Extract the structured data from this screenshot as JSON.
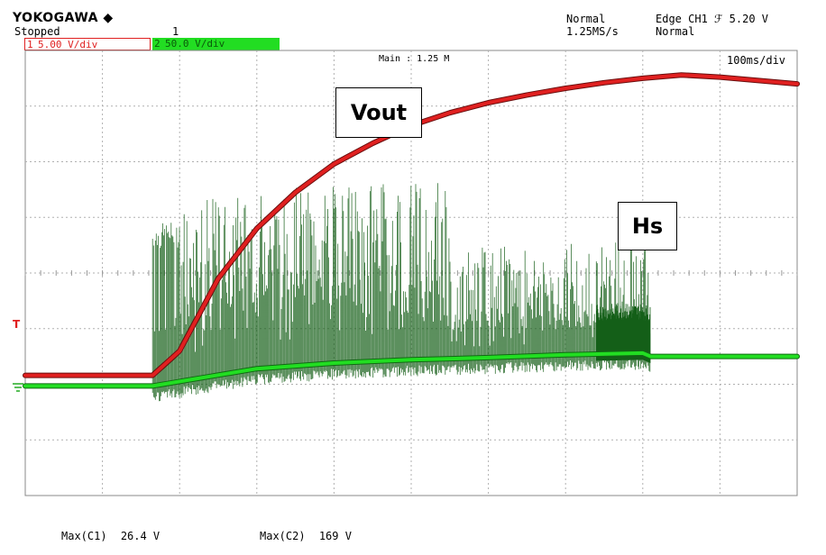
{
  "header": {
    "brand": "YOKOGAWA ◆",
    "status": "Stopped",
    "marker": "1",
    "trigger_mode": "Normal",
    "sample_rate": "1.25MS/s",
    "trigger_source": "Edge CH1 ℱ 5.20 V",
    "trigger_type": "Normal"
  },
  "channels": [
    {
      "number": "1",
      "scale": "5.00 V/div",
      "color": "#e02020"
    },
    {
      "number": "2",
      "scale": "50.0 V/div",
      "color": "#22dd22"
    }
  ],
  "screen": {
    "main_label": "Main : 1.25 M",
    "timebase": "100ms/div",
    "trigger_marker": "T"
  },
  "annotations": {
    "vout": "Vout",
    "hs": "Hs"
  },
  "measurements": [
    {
      "label": "Max(C1)",
      "value": "26.4 V"
    },
    {
      "label": "Max(C2)",
      "value": "169 V"
    }
  ],
  "chart_data": {
    "type": "line",
    "x_unit": "div",
    "y_unit": "div",
    "xlim": [
      0,
      10
    ],
    "ylim": [
      -4,
      4
    ],
    "grid": true,
    "series": [
      {
        "name": "Vout",
        "color": "#e02020",
        "x": [
          0,
          1.65,
          2.0,
          2.5,
          3.0,
          3.5,
          4.0,
          4.5,
          5.0,
          5.5,
          6.0,
          6.5,
          7.0,
          7.5,
          8.0,
          8.5,
          9.0,
          10.0
        ],
        "y": [
          -1.84,
          -1.84,
          -1.4,
          -0.1,
          0.8,
          1.45,
          1.96,
          2.33,
          2.65,
          2.88,
          3.06,
          3.2,
          3.32,
          3.42,
          3.5,
          3.56,
          3.52,
          3.4
        ]
      },
      {
        "name": "Hs",
        "color": "#22dd22",
        "x": [
          0,
          1.65,
          2.0,
          3.0,
          4.0,
          5.0,
          6.0,
          7.0,
          8.0,
          8.1,
          9.0,
          10.0
        ],
        "y": [
          -2.03,
          -2.03,
          -1.95,
          -1.72,
          -1.62,
          -1.56,
          -1.52,
          -1.47,
          -1.44,
          -1.5,
          -1.5,
          -1.5
        ]
      }
    ]
  }
}
